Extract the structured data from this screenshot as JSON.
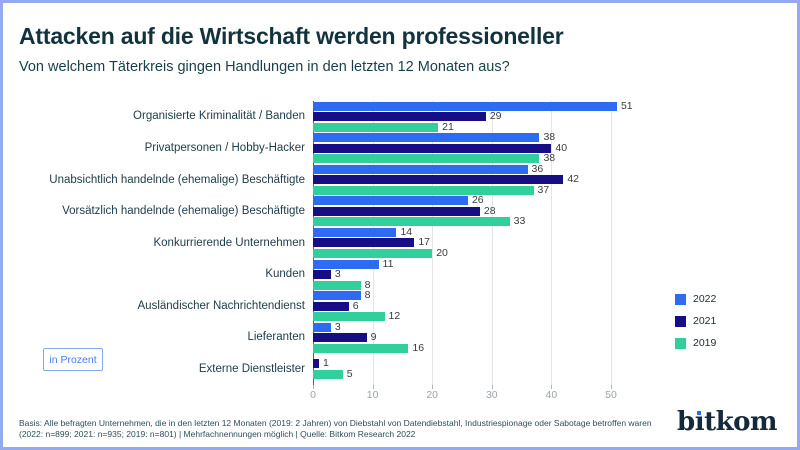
{
  "header": {
    "title": "Attacken auf die Wirtschaft werden professioneller",
    "subtitle": "Von welchem Täterkreis gingen Handlungen in den letzten 12 Monaten aus?"
  },
  "chart_data": {
    "type": "bar",
    "orientation": "horizontal",
    "unit_label": "in Prozent",
    "categories": [
      "Organisierte Kriminalität / Banden",
      "Privatpersonen / Hobby-Hacker",
      "Unabsichtlich handelnde (ehemalige) Beschäftigte",
      "Vorsätzlich handelnde (ehemalige) Beschäftigte",
      "Konkurrierende Unternehmen",
      "Kunden",
      "Ausländischer Nachrichtendienst",
      "Lieferanten",
      "Externe Dienstleister"
    ],
    "series": [
      {
        "name": "2022",
        "color": "#2D6BF2",
        "values": [
          51,
          38,
          36,
          26,
          14,
          11,
          8,
          3,
          null
        ]
      },
      {
        "name": "2021",
        "color": "#170E86",
        "values": [
          29,
          40,
          42,
          28,
          17,
          3,
          6,
          9,
          1
        ]
      },
      {
        "name": "2019",
        "color": "#31CF9B",
        "values": [
          21,
          38,
          37,
          33,
          20,
          8,
          12,
          16,
          5
        ]
      }
    ],
    "xlim": [
      0,
      55
    ],
    "xticks": [
      0,
      10,
      20,
      30,
      40,
      50
    ],
    "grid": true,
    "legend_position": "right"
  },
  "footer": {
    "line1": "Basis: Alle befragten Unternehmen, die in den letzten 12 Monaten (2019: 2 Jahren) von Diebstahl von Datendiebstahl, Industriespionage oder Sabotage betroffen waren",
    "line2": "(2022: n=899; 2021: n=935; 2019: n=801) | Mehrfachnennungen möglich | Quelle: Bitkom Research 2022"
  },
  "logo": {
    "pre": "b",
    "dotless_i": "ı",
    "post": "tkom"
  },
  "colors": {
    "accent_blue": "#2D6BF2",
    "navy": "#170E86",
    "green": "#31CF9B",
    "frame": "#94A9EF"
  }
}
